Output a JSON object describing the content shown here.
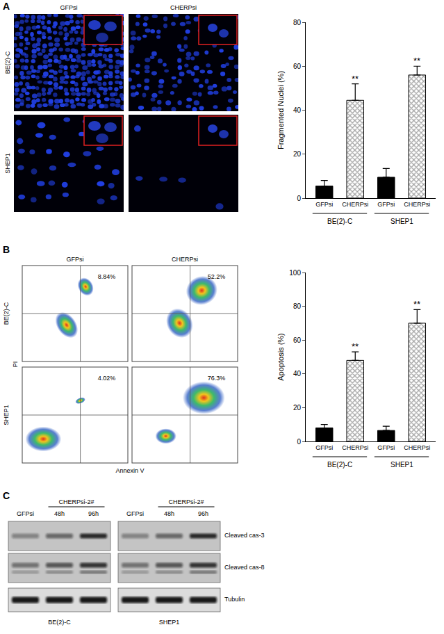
{
  "chart_data": [
    {
      "type": "bar",
      "categories": [
        "GFPsi",
        "CHERPsi",
        "GFPsi",
        "CHERPsi"
      ],
      "groups": [
        "BE(2)-C",
        "BE(2)-C",
        "SHEP1",
        "SHEP1"
      ],
      "values": [
        5.5,
        44.5,
        9.5,
        56
      ],
      "errors": [
        2.5,
        7.5,
        4,
        4
      ],
      "significance": [
        null,
        "**",
        null,
        "**"
      ],
      "colors": [
        "#000000",
        "#ffffff",
        "#000000",
        "#ffffff"
      ],
      "y_label": "Fragmented Nuclei (%)",
      "ylim": [
        0,
        80
      ],
      "yticks": [
        0,
        20,
        40,
        60,
        80
      ],
      "grid": false
    },
    {
      "type": "bar",
      "categories": [
        "GFPsi",
        "CHERPsi",
        "GFPsi",
        "CHERPsi"
      ],
      "groups": [
        "BE(2)-C",
        "BE(2)-C",
        "SHEP1",
        "SHEP1"
      ],
      "values": [
        8,
        48,
        6.5,
        70
      ],
      "errors": [
        2,
        5,
        2.5,
        8
      ],
      "significance": [
        null,
        "**",
        null,
        "**"
      ],
      "colors": [
        "#000000",
        "#ffffff",
        "#000000",
        "#ffffff"
      ],
      "y_label": "Apoptosis (%)",
      "ylim": [
        0,
        100
      ],
      "yticks": [
        0,
        20,
        40,
        60,
        80,
        100
      ],
      "grid": false
    }
  ],
  "panels": {
    "A": {
      "label": "A",
      "columns": [
        "GFPsi",
        "CHERPsi"
      ],
      "rows": [
        "BE(2)-C",
        "SHEP1"
      ]
    },
    "B": {
      "label": "B",
      "columns": [
        "GFPsi",
        "CHERPsi"
      ],
      "rows": [
        "BE(2)-C",
        "SHEP1"
      ],
      "quadrant_labels": [
        [
          "8.84%",
          "52.2%"
        ],
        [
          "4.02%",
          "76.3%"
        ]
      ],
      "x_label": "Annexin V",
      "y_label": "PI"
    },
    "C": {
      "label": "C",
      "treatment": "CHERPsi-2#",
      "lanes": [
        "GFPsi",
        "48h",
        "96h"
      ],
      "blots": [
        "Cleaved cas-3",
        "Cleaved cas-8",
        "Tubulin"
      ],
      "cell_lines": [
        "BE(2)-C",
        "SHEP1"
      ]
    }
  }
}
